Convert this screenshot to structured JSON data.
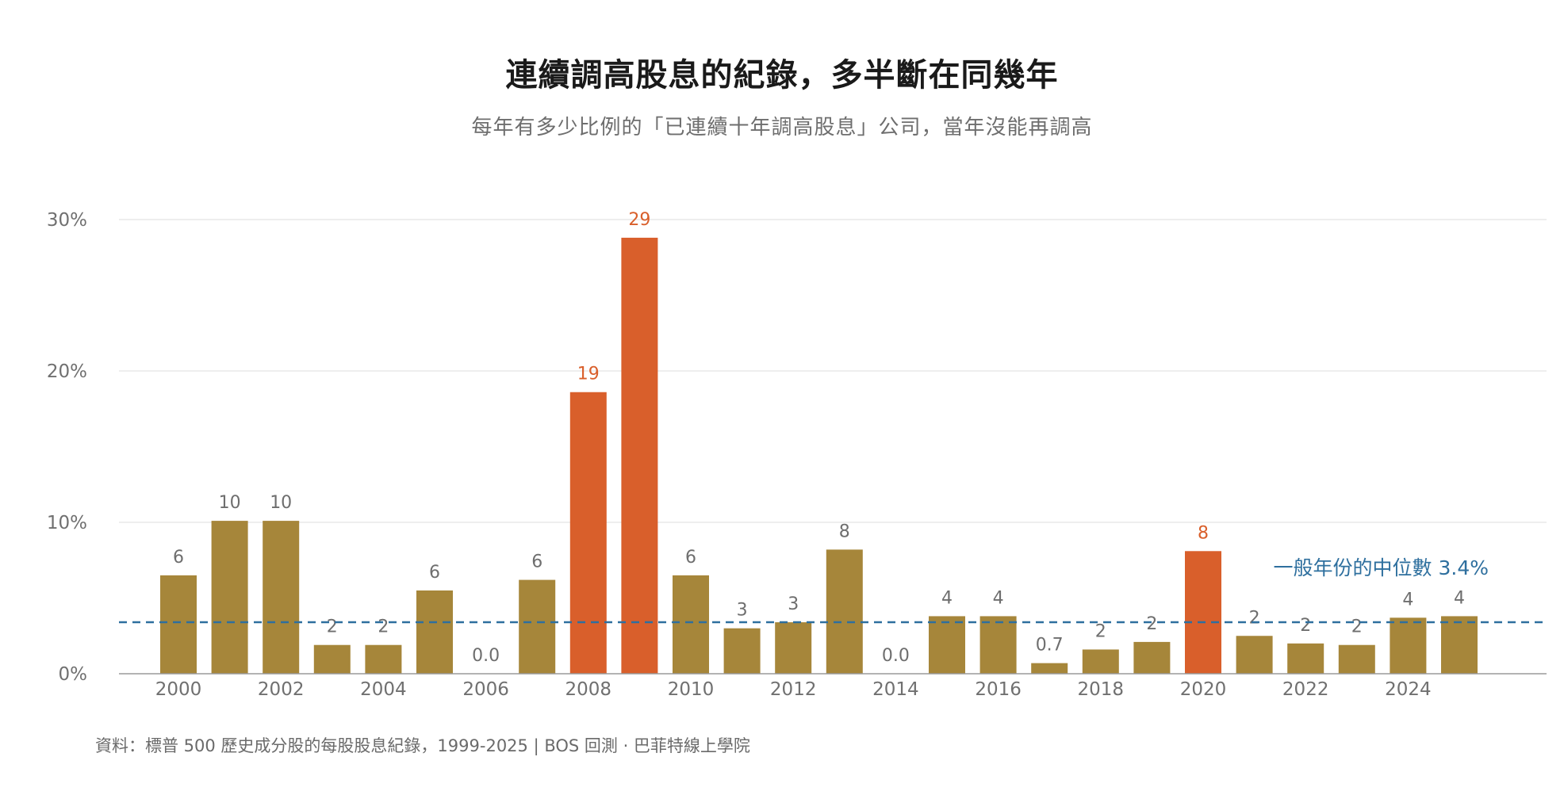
{
  "title": "連續調高股息的紀錄，多半斷在同幾年",
  "subtitle": "每年有多少比例的「已連續十年調高股息」公司，當年沒能再調高",
  "footer": "資料：標普 500 歷史成分股的每股股息紀錄，1999-2025 | BOS 回測 · 巴菲特線上學院",
  "colors": {
    "normal": "#a6863a",
    "highlight": "#d95f2b",
    "median": "#2e6f9e",
    "label": "#6e6e6e"
  },
  "chart_data": {
    "type": "bar",
    "categories": [
      "2000",
      "2001",
      "2002",
      "2003",
      "2004",
      "2005",
      "2006",
      "2007",
      "2008",
      "2009",
      "2010",
      "2011",
      "2012",
      "2013",
      "2014",
      "2015",
      "2016",
      "2017",
      "2018",
      "2019",
      "2020",
      "2021",
      "2022",
      "2023",
      "2024",
      "2025"
    ],
    "values": [
      6.5,
      10.1,
      10.1,
      1.9,
      1.9,
      5.5,
      0.0,
      6.2,
      18.6,
      28.8,
      6.5,
      3.0,
      3.4,
      8.2,
      0.0,
      3.8,
      3.8,
      0.7,
      1.6,
      2.1,
      8.1,
      2.5,
      2.0,
      1.9,
      3.7,
      3.8
    ],
    "labels": [
      "6",
      "10",
      "10",
      "2",
      "2",
      "6",
      "0.0",
      "6",
      "19",
      "29",
      "6",
      "3",
      "3",
      "8",
      "0.0",
      "4",
      "4",
      "0.7",
      "2",
      "2",
      "8",
      "2",
      "2",
      "2",
      "4",
      "4"
    ],
    "highlight": [
      false,
      false,
      false,
      false,
      false,
      false,
      false,
      false,
      true,
      true,
      false,
      false,
      false,
      false,
      false,
      false,
      false,
      false,
      false,
      false,
      true,
      false,
      false,
      false,
      false,
      false
    ],
    "xticks": [
      "2000",
      "2002",
      "2004",
      "2006",
      "2008",
      "2010",
      "2012",
      "2014",
      "2016",
      "2018",
      "2020",
      "2022",
      "2024"
    ],
    "yticks": [
      0,
      10,
      20,
      30
    ],
    "ytick_labels": [
      "0%",
      "10%",
      "20%",
      "30%"
    ],
    "ylim": [
      0,
      30
    ],
    "grid": true,
    "median": {
      "value": 3.4,
      "label": "一般年份的中位數 3.4%"
    }
  }
}
